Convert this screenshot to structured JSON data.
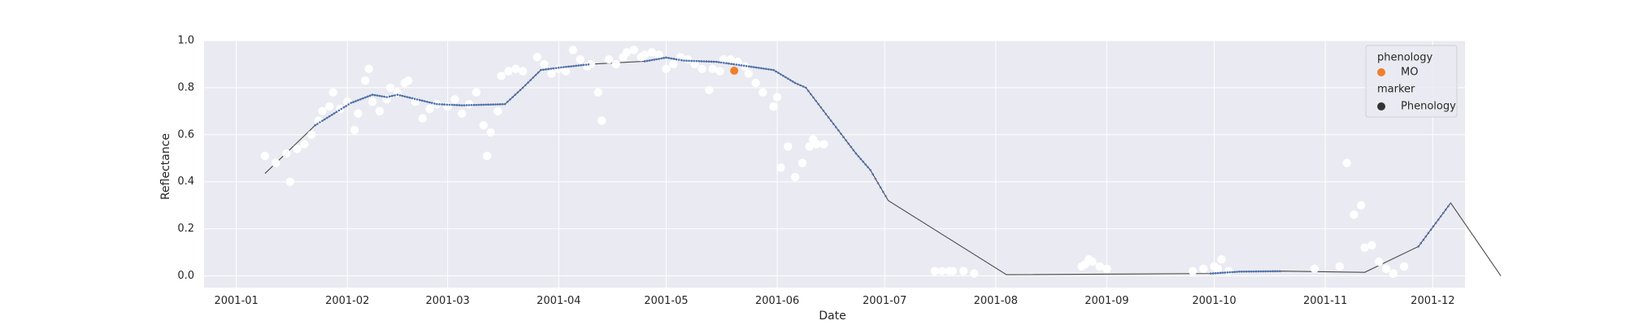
{
  "chart_data": {
    "type": "scatter",
    "xlabel": "Date",
    "ylabel": "Reflectance",
    "ylim": [
      -0.05,
      1.0
    ],
    "xlim": [
      "2000-12-23",
      "2001-12-10"
    ],
    "grid": true,
    "legend_position": "top-right",
    "x_ticks": [
      "2001-01-01",
      "2001-02-01",
      "2001-03-01",
      "2001-04-01",
      "2001-05-01",
      "2001-06-01",
      "2001-07-01",
      "2001-08-01",
      "2001-09-01",
      "2001-10-01",
      "2001-11-01",
      "2001-12-01"
    ],
    "x_tick_labels": [
      "2001-01",
      "2001-02",
      "2001-03",
      "2001-04",
      "2001-05",
      "2001-06",
      "2001-07",
      "2001-08",
      "2001-09",
      "2001-10",
      "2001-11",
      "2001-12"
    ],
    "y_ticks": [
      0.0,
      0.2,
      0.4,
      0.6,
      0.8,
      1.0
    ],
    "y_tick_labels": [
      "0.0",
      "0.2",
      "0.4",
      "0.6",
      "0.8",
      "1.0"
    ],
    "colors": {
      "background": "#eaeaf2",
      "grid": "#ffffff",
      "scatter": "#ffffff",
      "line": "#4a4a4a",
      "markers": "#4c72b0",
      "phenology": "#f07f2b",
      "legend_marker": "#333333"
    },
    "legend": {
      "groups": [
        {
          "title": "phenology",
          "entries": [
            {
              "label": "MO",
              "color": "#f07f2b"
            }
          ]
        },
        {
          "title": "marker",
          "entries": [
            {
              "label": "Phenology",
              "color": "#333333"
            }
          ]
        }
      ]
    },
    "series": [
      {
        "kind": "scatter",
        "points": [
          [
            "2001-01-09",
            0.51
          ],
          [
            "2001-01-12",
            0.48
          ],
          [
            "2001-01-15",
            0.52
          ],
          [
            "2001-01-16",
            0.4
          ],
          [
            "2001-01-18",
            0.54
          ],
          [
            "2001-01-20",
            0.56
          ],
          [
            "2001-01-22",
            0.6
          ],
          [
            "2001-01-24",
            0.66
          ],
          [
            "2001-01-25",
            0.7
          ],
          [
            "2001-01-27",
            0.72
          ],
          [
            "2001-01-28",
            0.78
          ],
          [
            "2001-01-30",
            0.71
          ],
          [
            "2001-02-01",
            0.74
          ],
          [
            "2001-02-03",
            0.62
          ],
          [
            "2001-02-04",
            0.69
          ],
          [
            "2001-02-06",
            0.83
          ],
          [
            "2001-02-07",
            0.88
          ],
          [
            "2001-02-08",
            0.74
          ],
          [
            "2001-02-10",
            0.7
          ],
          [
            "2001-02-12",
            0.75
          ],
          [
            "2001-02-13",
            0.8
          ],
          [
            "2001-02-15",
            0.78
          ],
          [
            "2001-02-17",
            0.82
          ],
          [
            "2001-02-18",
            0.83
          ],
          [
            "2001-02-20",
            0.74
          ],
          [
            "2001-02-22",
            0.67
          ],
          [
            "2001-02-24",
            0.71
          ],
          [
            "2001-02-26",
            0.73
          ],
          [
            "2001-03-01",
            0.72
          ],
          [
            "2001-03-03",
            0.75
          ],
          [
            "2001-03-05",
            0.69
          ],
          [
            "2001-03-07",
            0.73
          ],
          [
            "2001-03-09",
            0.78
          ],
          [
            "2001-03-11",
            0.64
          ],
          [
            "2001-03-12",
            0.51
          ],
          [
            "2001-03-13",
            0.61
          ],
          [
            "2001-03-15",
            0.7
          ],
          [
            "2001-03-16",
            0.85
          ],
          [
            "2001-03-18",
            0.87
          ],
          [
            "2001-03-20",
            0.88
          ],
          [
            "2001-03-22",
            0.87
          ],
          [
            "2001-03-26",
            0.93
          ],
          [
            "2001-03-28",
            0.9
          ],
          [
            "2001-03-30",
            0.86
          ],
          [
            "2001-04-01",
            0.88
          ],
          [
            "2001-04-03",
            0.87
          ],
          [
            "2001-04-05",
            0.96
          ],
          [
            "2001-04-07",
            0.92
          ],
          [
            "2001-04-09",
            0.89
          ],
          [
            "2001-04-10",
            0.9
          ],
          [
            "2001-04-12",
            0.78
          ],
          [
            "2001-04-13",
            0.66
          ],
          [
            "2001-04-15",
            0.92
          ],
          [
            "2001-04-17",
            0.9
          ],
          [
            "2001-04-19",
            0.93
          ],
          [
            "2001-04-20",
            0.95
          ],
          [
            "2001-04-22",
            0.96
          ],
          [
            "2001-04-24",
            0.93
          ],
          [
            "2001-04-25",
            0.94
          ],
          [
            "2001-04-27",
            0.95
          ],
          [
            "2001-04-29",
            0.94
          ],
          [
            "2001-05-01",
            0.88
          ],
          [
            "2001-05-03",
            0.9
          ],
          [
            "2001-05-05",
            0.93
          ],
          [
            "2001-05-07",
            0.92
          ],
          [
            "2001-05-09",
            0.9
          ],
          [
            "2001-05-11",
            0.88
          ],
          [
            "2001-05-13",
            0.79
          ],
          [
            "2001-05-14",
            0.88
          ],
          [
            "2001-05-16",
            0.87
          ],
          [
            "2001-05-17",
            0.92
          ],
          [
            "2001-05-19",
            0.92
          ],
          [
            "2001-05-21",
            0.91
          ],
          [
            "2001-05-23",
            0.89
          ],
          [
            "2001-05-24",
            0.86
          ],
          [
            "2001-05-26",
            0.82
          ],
          [
            "2001-05-28",
            0.78
          ],
          [
            "2001-05-31",
            0.72
          ],
          [
            "2001-06-01",
            0.76
          ],
          [
            "2001-06-02",
            0.46
          ],
          [
            "2001-06-04",
            0.55
          ],
          [
            "2001-06-06",
            0.42
          ],
          [
            "2001-06-08",
            0.48
          ],
          [
            "2001-06-10",
            0.55
          ],
          [
            "2001-06-11",
            0.58
          ],
          [
            "2001-06-12",
            0.56
          ],
          [
            "2001-06-14",
            0.56
          ],
          [
            "2001-07-15",
            0.02
          ],
          [
            "2001-07-17",
            0.02
          ],
          [
            "2001-07-19",
            0.02
          ],
          [
            "2001-07-20",
            0.02
          ],
          [
            "2001-07-23",
            0.02
          ],
          [
            "2001-07-26",
            0.01
          ],
          [
            "2001-08-25",
            0.04
          ],
          [
            "2001-08-26",
            0.05
          ],
          [
            "2001-08-27",
            0.07
          ],
          [
            "2001-08-28",
            0.06
          ],
          [
            "2001-08-30",
            0.04
          ],
          [
            "2001-09-01",
            0.03
          ],
          [
            "2001-09-25",
            0.02
          ],
          [
            "2001-09-28",
            0.03
          ],
          [
            "2001-10-01",
            0.04
          ],
          [
            "2001-10-02",
            0.03
          ],
          [
            "2001-10-03",
            0.07
          ],
          [
            "2001-10-05",
            0.02
          ],
          [
            "2001-10-29",
            0.03
          ],
          [
            "2001-11-05",
            0.04
          ],
          [
            "2001-11-07",
            0.48
          ],
          [
            "2001-11-09",
            0.26
          ],
          [
            "2001-11-11",
            0.3
          ],
          [
            "2001-11-12",
            0.12
          ],
          [
            "2001-11-14",
            0.13
          ],
          [
            "2001-11-16",
            0.06
          ],
          [
            "2001-11-18",
            0.03
          ],
          [
            "2001-11-20",
            0.01
          ],
          [
            "2001-11-23",
            0.04
          ]
        ]
      },
      {
        "kind": "line",
        "points": [
          [
            "2001-01-09",
            0.435
          ],
          [
            "2001-01-23",
            0.64
          ],
          [
            "2001-02-02",
            0.735
          ],
          [
            "2001-02-08",
            0.77
          ],
          [
            "2001-02-12",
            0.76
          ],
          [
            "2001-02-15",
            0.77
          ],
          [
            "2001-02-26",
            0.73
          ],
          [
            "2001-03-05",
            0.725
          ],
          [
            "2001-03-17",
            0.73
          ],
          [
            "2001-03-22",
            0.8
          ],
          [
            "2001-03-27",
            0.875
          ],
          [
            "2001-04-01",
            0.885
          ],
          [
            "2001-04-10",
            0.9
          ],
          [
            "2001-04-25",
            0.912
          ],
          [
            "2001-05-01",
            0.928
          ],
          [
            "2001-05-06",
            0.915
          ],
          [
            "2001-05-15",
            0.91
          ],
          [
            "2001-05-22",
            0.895
          ],
          [
            "2001-05-31",
            0.875
          ],
          [
            "2001-06-06",
            0.82
          ],
          [
            "2001-06-09",
            0.8
          ],
          [
            "2001-06-16",
            0.66
          ],
          [
            "2001-06-23",
            0.52
          ],
          [
            "2001-06-27",
            0.45
          ],
          [
            "2001-07-02",
            0.32
          ],
          [
            "2001-08-04",
            0.005
          ],
          [
            "2001-09-30",
            0.01
          ],
          [
            "2001-10-08",
            0.018
          ],
          [
            "2001-10-20",
            0.02
          ],
          [
            "2001-11-12",
            0.015
          ],
          [
            "2001-11-27",
            0.125
          ],
          [
            "2001-12-06",
            0.31
          ],
          [
            "2001-12-20",
            0.0
          ]
        ]
      },
      {
        "kind": "phenology",
        "name": "MO",
        "points": [
          [
            "2001-05-20",
            0.872
          ]
        ]
      }
    ]
  }
}
